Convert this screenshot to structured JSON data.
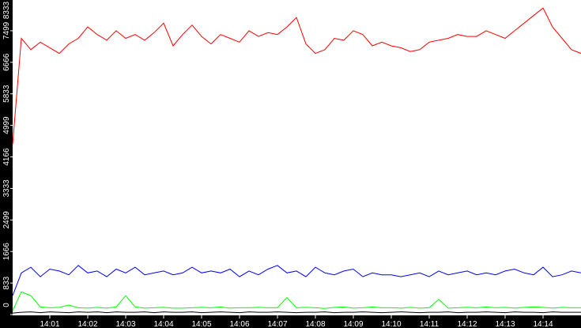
{
  "chart_data": {
    "type": "line",
    "title": "",
    "xlabel": "",
    "ylabel": "",
    "ylim": [
      0,
      8333
    ],
    "xlim_minutes": [
      0,
      15
    ],
    "grid": false,
    "legend": "none",
    "y_ticks": [
      "0",
      "833",
      "1666",
      "2499",
      "3333",
      "4166",
      "4999",
      "5833",
      "6666",
      "7499",
      "8333"
    ],
    "x_ticks": [
      "14:01",
      "14:02",
      "14:03",
      "14:04",
      "14:05",
      "14:06",
      "14:07",
      "14:08",
      "14:09",
      "14:10",
      "14:11",
      "14:12",
      "14:13",
      "14:14"
    ],
    "x_step_seconds": 15,
    "series": [
      {
        "color": "#ff0000",
        "values": [
          4500,
          7300,
          7000,
          7200,
          7050,
          6900,
          7150,
          7300,
          7600,
          7400,
          7250,
          7500,
          7300,
          7400,
          7250,
          7450,
          7700,
          7100,
          7400,
          7650,
          7350,
          7150,
          7400,
          7300,
          7200,
          7500,
          7350,
          7450,
          7400,
          7600,
          7850,
          7150,
          6900,
          7000,
          7300,
          7250,
          7500,
          7400,
          7100,
          7200,
          7100,
          7050,
          6950,
          7000,
          7200,
          7250,
          7300,
          7400,
          7350,
          7350,
          7500,
          7400,
          7300,
          7500,
          7700,
          7900,
          8100,
          7600,
          7300,
          7000,
          6900
        ],
        "note": ""
      },
      {
        "color": "#0000ff",
        "values": [
          500,
          1100,
          1250,
          1000,
          1200,
          1150,
          1050,
          1300,
          1100,
          1150,
          1000,
          1200,
          1100,
          1250,
          1050,
          1100,
          1150,
          1050,
          1100,
          1250,
          1100,
          1150,
          1100,
          1200,
          1000,
          1150,
          1050,
          1200,
          1300,
          1100,
          1150,
          1000,
          1250,
          1100,
          1050,
          1150,
          1200,
          1000,
          1100,
          1050,
          1050,
          1000,
          1050,
          1100,
          1000,
          1150,
          1050,
          1100,
          1150,
          1050,
          1100,
          1050,
          1150,
          1200,
          1100,
          1050,
          1250,
          1000,
          1050,
          1150,
          1100
        ],
        "note": ""
      },
      {
        "color": "#00ff00",
        "values": [
          100,
          600,
          500,
          200,
          180,
          190,
          250,
          180,
          170,
          190,
          170,
          200,
          500,
          200,
          170,
          180,
          190,
          170,
          170,
          180,
          190,
          180,
          200,
          170,
          180,
          180,
          190,
          180,
          180,
          450,
          180,
          190,
          180,
          160,
          190,
          200,
          170,
          180,
          200,
          180,
          180,
          170,
          190,
          170,
          180,
          400,
          170,
          180,
          190,
          180,
          200,
          180,
          190,
          170,
          190,
          200,
          190,
          170,
          190,
          180,
          180
        ],
        "note": ""
      },
      {
        "color": "#000000",
        "values": [
          40,
          60,
          70,
          50,
          70,
          60,
          50,
          70,
          60,
          70,
          50,
          70,
          60,
          60,
          70,
          50,
          70,
          60,
          60,
          70,
          50,
          60,
          70,
          60,
          50,
          70,
          60,
          60,
          70,
          60,
          50,
          60,
          60,
          70,
          50,
          60,
          60,
          70,
          60,
          50,
          60,
          70,
          60,
          50,
          60,
          60,
          70,
          50,
          60,
          60,
          70,
          60,
          50,
          70,
          60,
          60,
          50,
          70,
          60,
          60,
          60
        ],
        "note": ""
      }
    ]
  }
}
